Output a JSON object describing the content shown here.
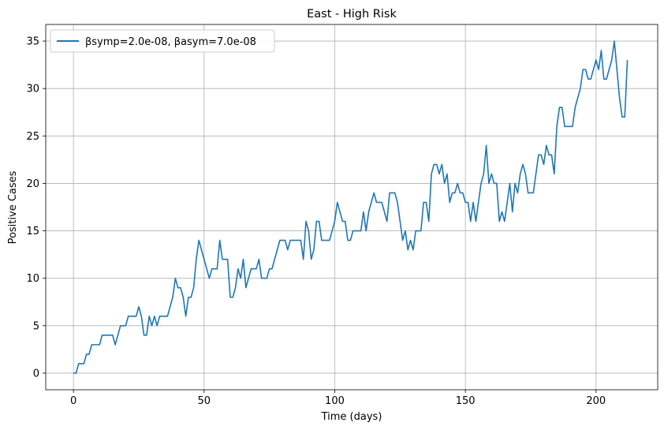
{
  "chart_data": {
    "type": "line",
    "title": "East - High Risk",
    "xlabel": "Time (days)",
    "ylabel": "Positive Cases",
    "xlim": [
      -10.6,
      223.6
    ],
    "ylim": [
      -1.75,
      36.75
    ],
    "xticks": [
      0,
      50,
      100,
      150,
      200
    ],
    "yticks": [
      0,
      5,
      10,
      15,
      20,
      25,
      30,
      35
    ],
    "grid": true,
    "legend_position": "top-left",
    "series": [
      {
        "name": "βsymp=2.0e-08, βasym=7.0e-08",
        "color": "#1f77b4",
        "x": [
          0,
          1,
          2,
          3,
          4,
          5,
          6,
          7,
          8,
          9,
          10,
          11,
          12,
          13,
          14,
          15,
          16,
          17,
          18,
          19,
          20,
          21,
          22,
          23,
          24,
          25,
          26,
          27,
          28,
          29,
          30,
          31,
          32,
          33,
          34,
          35,
          36,
          37,
          38,
          39,
          40,
          41,
          42,
          43,
          44,
          45,
          46,
          47,
          48,
          49,
          50,
          51,
          52,
          53,
          54,
          55,
          56,
          57,
          58,
          59,
          60,
          61,
          62,
          63,
          64,
          65,
          66,
          67,
          68,
          69,
          70,
          71,
          72,
          73,
          74,
          75,
          76,
          77,
          78,
          79,
          80,
          81,
          82,
          83,
          84,
          85,
          86,
          87,
          88,
          89,
          90,
          91,
          92,
          93,
          94,
          95,
          96,
          97,
          98,
          99,
          100,
          101,
          102,
          103,
          104,
          105,
          106,
          107,
          108,
          109,
          110,
          111,
          112,
          113,
          114,
          115,
          116,
          117,
          118,
          119,
          120,
          121,
          122,
          123,
          124,
          125,
          126,
          127,
          128,
          129,
          130,
          131,
          132,
          133,
          134,
          135,
          136,
          137,
          138,
          139,
          140,
          141,
          142,
          143,
          144,
          145,
          146,
          147,
          148,
          149,
          150,
          151,
          152,
          153,
          154,
          155,
          156,
          157,
          158,
          159,
          160,
          161,
          162,
          163,
          164,
          165,
          166,
          167,
          168,
          169,
          170,
          171,
          172,
          173,
          174,
          175,
          176,
          177,
          178,
          179,
          180,
          181,
          182,
          183,
          184,
          185,
          186,
          187,
          188,
          189,
          190,
          191,
          192,
          193,
          194,
          195,
          196,
          197,
          198,
          199,
          200,
          201,
          202,
          203,
          204,
          205,
          206,
          207,
          208,
          209,
          210,
          211,
          212
        ],
        "y": [
          0,
          0,
          1,
          1,
          1,
          2,
          2,
          3,
          3,
          3,
          3,
          4,
          4,
          4,
          4,
          4,
          3,
          4,
          5,
          5,
          5,
          6,
          6,
          6,
          6,
          7,
          6,
          4,
          4,
          6,
          5,
          6,
          5,
          6,
          6,
          6,
          6,
          7,
          8,
          10,
          9,
          9,
          8,
          6,
          8,
          8,
          9,
          12,
          14,
          13,
          12,
          11,
          10,
          11,
          11,
          11,
          14,
          12,
          12,
          12,
          8,
          8,
          9,
          11,
          10,
          12,
          9,
          10,
          11,
          11,
          11,
          12,
          10,
          10,
          10,
          11,
          11,
          12,
          13,
          14,
          14,
          14,
          13,
          14,
          14,
          14,
          14,
          14,
          12,
          16,
          15,
          12,
          13,
          16,
          16,
          14,
          14,
          14,
          14,
          15,
          16,
          18,
          17,
          16,
          16,
          14,
          14,
          15,
          15,
          15,
          15,
          17,
          15,
          17,
          18,
          19,
          18,
          18,
          18,
          17,
          16,
          19,
          19,
          19,
          18,
          16,
          14,
          15,
          13,
          14,
          13,
          15,
          15,
          15,
          18,
          18,
          16,
          21,
          22,
          22,
          21,
          22,
          20,
          21,
          18,
          19,
          19,
          20,
          19,
          19,
          18,
          18,
          16,
          18,
          16,
          18,
          20,
          21,
          24,
          20,
          21,
          20,
          20,
          16,
          17,
          16,
          18,
          20,
          17,
          20,
          19,
          21,
          22,
          21,
          19,
          19,
          19,
          21,
          23,
          23,
          22,
          24,
          23,
          23,
          21,
          26,
          28,
          28,
          26,
          26,
          26,
          26,
          28,
          29,
          30,
          32,
          32,
          31,
          31,
          32,
          33,
          32,
          34,
          31,
          31,
          32,
          33,
          35,
          32,
          29,
          27,
          27,
          33
        ]
      }
    ]
  }
}
